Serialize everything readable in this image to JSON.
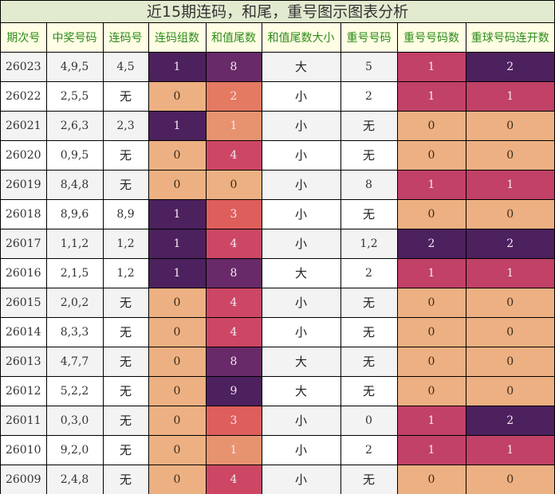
{
  "title": "近15期连码，和尾，重号图示图表分析",
  "columns": [
    "期次号",
    "中奖号码",
    "连码号",
    "连码组数",
    "和值尾数",
    "和值尾数大小",
    "重号号码",
    "重号号码数",
    "重球号码连开数"
  ],
  "colors": {
    "header_bg": "#fffde3",
    "header_text": "#2c8c1b",
    "title_bg": "#e2ebd0",
    "heat_0": "#edb082",
    "heat_1_tail": "#e8936f",
    "heat_2_tail": "#e57a62",
    "heat_3_tail": "#de5e5c",
    "heat_4_tail": "#cd4764",
    "heat_8_tail": "#682a68",
    "heat_9_tail": "#4c215e",
    "count_1": "#c14167",
    "count_2": "#4c215e"
  },
  "rows": [
    {
      "issue": "26023",
      "numbers": "4,9,5",
      "consec": "4,5",
      "consec_groups": "1",
      "sum_tail": "8",
      "size": "大",
      "repeat": "5",
      "repeat_count": "1",
      "repeat_streak": "2"
    },
    {
      "issue": "26022",
      "numbers": "2,5,5",
      "consec": "无",
      "consec_groups": "0",
      "sum_tail": "2",
      "size": "小",
      "repeat": "2",
      "repeat_count": "1",
      "repeat_streak": "1"
    },
    {
      "issue": "26021",
      "numbers": "2,6,3",
      "consec": "2,3",
      "consec_groups": "1",
      "sum_tail": "1",
      "size": "小",
      "repeat": "无",
      "repeat_count": "0",
      "repeat_streak": "0"
    },
    {
      "issue": "26020",
      "numbers": "0,9,5",
      "consec": "无",
      "consec_groups": "0",
      "sum_tail": "4",
      "size": "小",
      "repeat": "无",
      "repeat_count": "0",
      "repeat_streak": "0"
    },
    {
      "issue": "26019",
      "numbers": "8,4,8",
      "consec": "无",
      "consec_groups": "0",
      "sum_tail": "0",
      "size": "小",
      "repeat": "8",
      "repeat_count": "1",
      "repeat_streak": "1"
    },
    {
      "issue": "26018",
      "numbers": "8,9,6",
      "consec": "8,9",
      "consec_groups": "1",
      "sum_tail": "3",
      "size": "小",
      "repeat": "无",
      "repeat_count": "0",
      "repeat_streak": "0"
    },
    {
      "issue": "26017",
      "numbers": "1,1,2",
      "consec": "1,2",
      "consec_groups": "1",
      "sum_tail": "4",
      "size": "小",
      "repeat": "1,2",
      "repeat_count": "2",
      "repeat_streak": "2"
    },
    {
      "issue": "26016",
      "numbers": "2,1,5",
      "consec": "1,2",
      "consec_groups": "1",
      "sum_tail": "8",
      "size": "大",
      "repeat": "2",
      "repeat_count": "1",
      "repeat_streak": "1"
    },
    {
      "issue": "26015",
      "numbers": "2,0,2",
      "consec": "无",
      "consec_groups": "0",
      "sum_tail": "4",
      "size": "小",
      "repeat": "无",
      "repeat_count": "0",
      "repeat_streak": "0"
    },
    {
      "issue": "26014",
      "numbers": "8,3,3",
      "consec": "无",
      "consec_groups": "0",
      "sum_tail": "4",
      "size": "小",
      "repeat": "无",
      "repeat_count": "0",
      "repeat_streak": "0"
    },
    {
      "issue": "26013",
      "numbers": "4,7,7",
      "consec": "无",
      "consec_groups": "0",
      "sum_tail": "8",
      "size": "大",
      "repeat": "无",
      "repeat_count": "0",
      "repeat_streak": "0"
    },
    {
      "issue": "26012",
      "numbers": "5,2,2",
      "consec": "无",
      "consec_groups": "0",
      "sum_tail": "9",
      "size": "大",
      "repeat": "无",
      "repeat_count": "0",
      "repeat_streak": "0"
    },
    {
      "issue": "26011",
      "numbers": "0,3,0",
      "consec": "无",
      "consec_groups": "0",
      "sum_tail": "3",
      "size": "小",
      "repeat": "0",
      "repeat_count": "1",
      "repeat_streak": "2"
    },
    {
      "issue": "26010",
      "numbers": "9,2,0",
      "consec": "无",
      "consec_groups": "0",
      "sum_tail": "1",
      "size": "小",
      "repeat": "2",
      "repeat_count": "1",
      "repeat_streak": "1"
    },
    {
      "issue": "26009",
      "numbers": "2,4,8",
      "consec": "无",
      "consec_groups": "0",
      "sum_tail": "4",
      "size": "小",
      "repeat": "无",
      "repeat_count": "0",
      "repeat_streak": "0"
    }
  ],
  "chart_data": {
    "type": "table",
    "title": "近15期连码，和尾，重号图示图表分析",
    "columns": [
      "期次号",
      "中奖号码",
      "连码号",
      "连码组数",
      "和值尾数",
      "和值尾数大小",
      "重号号码",
      "重号号码数",
      "重球号码连开数"
    ],
    "rows": [
      [
        "26023",
        "4,9,5",
        "4,5",
        1,
        8,
        "大",
        "5",
        1,
        2
      ],
      [
        "26022",
        "2,5,5",
        "无",
        0,
        2,
        "小",
        "2",
        1,
        1
      ],
      [
        "26021",
        "2,6,3",
        "2,3",
        1,
        1,
        "小",
        "无",
        0,
        0
      ],
      [
        "26020",
        "0,9,5",
        "无",
        0,
        4,
        "小",
        "无",
        0,
        0
      ],
      [
        "26019",
        "8,4,8",
        "无",
        0,
        0,
        "小",
        "8",
        1,
        1
      ],
      [
        "26018",
        "8,9,6",
        "8,9",
        1,
        3,
        "小",
        "无",
        0,
        0
      ],
      [
        "26017",
        "1,1,2",
        "1,2",
        1,
        4,
        "小",
        "1,2",
        2,
        2
      ],
      [
        "26016",
        "2,1,5",
        "1,2",
        1,
        8,
        "大",
        "2",
        1,
        1
      ],
      [
        "26015",
        "2,0,2",
        "无",
        0,
        4,
        "小",
        "无",
        0,
        0
      ],
      [
        "26014",
        "8,3,3",
        "无",
        0,
        4,
        "小",
        "无",
        0,
        0
      ],
      [
        "26013",
        "4,7,7",
        "无",
        0,
        8,
        "大",
        "无",
        0,
        0
      ],
      [
        "26012",
        "5,2,2",
        "无",
        0,
        9,
        "大",
        "无",
        0,
        0
      ],
      [
        "26011",
        "0,3,0",
        "无",
        0,
        3,
        "小",
        "0",
        1,
        2
      ],
      [
        "26010",
        "9,2,0",
        "无",
        0,
        1,
        "小",
        "2",
        1,
        1
      ],
      [
        "26009",
        "2,4,8",
        "无",
        0,
        4,
        "小",
        "无",
        0,
        0
      ]
    ],
    "heatmap_columns": [
      "连码组数",
      "和值尾数",
      "重号号码数",
      "重球号码连开数"
    ],
    "colormap": "magma-like (0 = light orange, high = dark purple)"
  }
}
